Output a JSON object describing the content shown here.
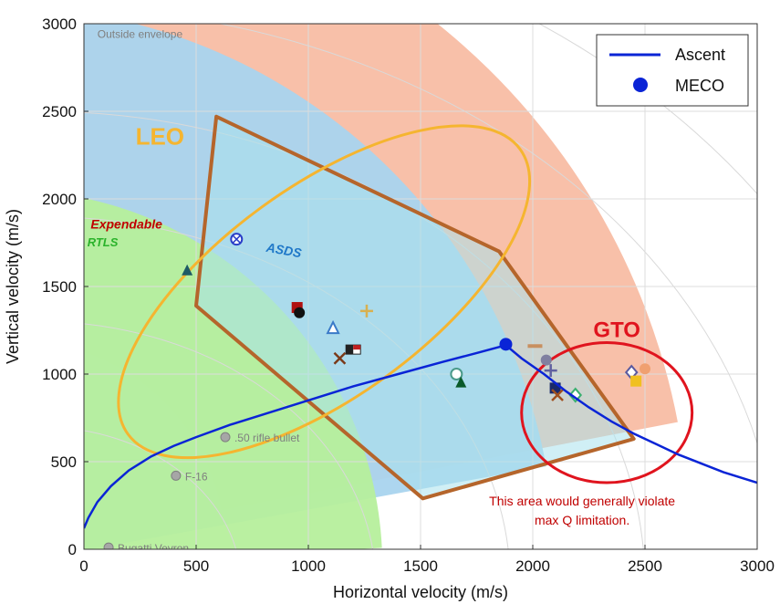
{
  "chart_data": {
    "type": "line",
    "title": "",
    "xlabel": "Horizontal velocity (m/s)",
    "ylabel": "Vertical velocity (m/s)",
    "xlim": [
      0,
      3000
    ],
    "ylim": [
      0,
      3000
    ],
    "xticks": [
      0,
      500,
      1000,
      1500,
      2000,
      2500,
      3000
    ],
    "yticks": [
      0,
      500,
      1000,
      1500,
      2000,
      2500,
      3000
    ],
    "grid": true,
    "legend_position": "top-right",
    "series": [
      {
        "name": "Ascent",
        "color": "#0a24d6",
        "x": [
          0,
          20,
          60,
          120,
          200,
          300,
          400,
          500,
          650,
          800,
          1000,
          1200,
          1400,
          1600,
          1750,
          1880,
          1950,
          2050,
          2150,
          2250,
          2350,
          2450,
          2550,
          2650,
          2750,
          2850,
          3000
        ],
        "y": [
          120,
          180,
          270,
          360,
          450,
          530,
          590,
          640,
          710,
          770,
          850,
          930,
          1000,
          1070,
          1120,
          1165,
          1090,
          1000,
          900,
          810,
          730,
          660,
          600,
          540,
          490,
          440,
          380
        ]
      }
    ],
    "meco": {
      "name": "MECO",
      "x": 1880,
      "y": 1170,
      "color": "#0a24d6"
    },
    "regions": [
      {
        "label": "Expendable",
        "label_color": "#c00000",
        "fill": "#f7b9a0"
      },
      {
        "label": "RTLS",
        "label_color": "#2bb32b",
        "fill": "#b6ef9c"
      },
      {
        "label": "ASDS",
        "label_color": "#1f78c8",
        "fill": "#a9d4ee"
      },
      {
        "label": "Outside envelope",
        "label_color": "#7f7f7f"
      }
    ],
    "envelope": {
      "stroke": "#b5652b",
      "fill": "#a9e2ec",
      "points": [
        [
          500,
          1390
        ],
        [
          590,
          2470
        ],
        [
          1850,
          1700
        ],
        [
          2450,
          630
        ],
        [
          1510,
          290
        ]
      ]
    },
    "ellipses": [
      {
        "label": "LEO",
        "color": "#f5b530",
        "cx": 1070,
        "cy": 1470,
        "rx": 1080,
        "ry": 600,
        "angle_deg": -36
      },
      {
        "label": "GTO",
        "color": "#e0141e",
        "cx": 2330,
        "cy": 780,
        "rx": 380,
        "ry": 400,
        "angle_deg": 0
      }
    ],
    "reference_points": [
      {
        "label": ".50 rifle bullet",
        "x": 630,
        "y": 640
      },
      {
        "label": "F-16",
        "x": 410,
        "y": 420
      },
      {
        "label": "Bugatti Veyron",
        "x": 110,
        "y": 10
      }
    ],
    "vehicle_markers": [
      {
        "shape": "triangle",
        "x": 460,
        "y": 1590,
        "color": "#1e5a66"
      },
      {
        "shape": "crossed-circle",
        "x": 680,
        "y": 1770,
        "color": "#2a3ec8"
      },
      {
        "shape": "square",
        "x": 950,
        "y": 1380,
        "color": "#b01010"
      },
      {
        "shape": "circle",
        "x": 960,
        "y": 1350,
        "color": "#111111"
      },
      {
        "shape": "triangle-open",
        "x": 1110,
        "y": 1260,
        "color": "#3a7ac8"
      },
      {
        "shape": "plus",
        "x": 1260,
        "y": 1360,
        "color": "#d8b050"
      },
      {
        "shape": "flag",
        "x": 1200,
        "y": 1140,
        "color": "#c02020"
      },
      {
        "shape": "x",
        "x": 1140,
        "y": 1090,
        "color": "#7a3a1a"
      },
      {
        "shape": "circle-open",
        "x": 1660,
        "y": 1000,
        "color": "#4a9a8a"
      },
      {
        "shape": "triangle",
        "x": 1680,
        "y": 950,
        "color": "#0a5a2a"
      },
      {
        "shape": "dash",
        "x": 2010,
        "y": 1160,
        "color": "#c89060"
      },
      {
        "shape": "circle",
        "x": 2060,
        "y": 1080,
        "color": "#8080a0"
      },
      {
        "shape": "plus",
        "x": 2080,
        "y": 1020,
        "color": "#6060a0"
      },
      {
        "shape": "square",
        "x": 2100,
        "y": 920,
        "color": "#1a2a6a"
      },
      {
        "shape": "x",
        "x": 2110,
        "y": 880,
        "color": "#a05020"
      },
      {
        "shape": "diamond-open",
        "x": 2190,
        "y": 880,
        "color": "#3ab070"
      },
      {
        "shape": "diamond-open",
        "x": 2440,
        "y": 1010,
        "color": "#5a5aa0"
      },
      {
        "shape": "square",
        "x": 2460,
        "y": 960,
        "color": "#f0c020"
      },
      {
        "shape": "circle",
        "x": 2500,
        "y": 1030,
        "color": "#f0a070"
      }
    ],
    "annotations": [
      {
        "text": "This area would generally violate",
        "x": 2220,
        "y": 250,
        "color": "#c00000"
      },
      {
        "text": "max Q limitation.",
        "x": 2220,
        "y": 140,
        "color": "#c00000"
      }
    ]
  }
}
